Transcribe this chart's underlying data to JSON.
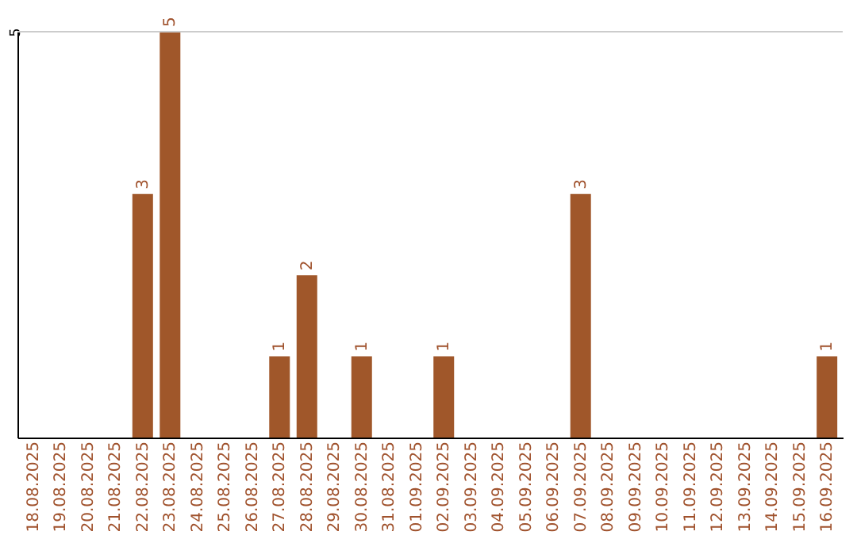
{
  "chart_data": {
    "type": "bar",
    "categories": [
      "18.08.2025",
      "19.08.2025",
      "20.08.2025",
      "21.08.2025",
      "22.08.2025",
      "23.08.2025",
      "24.08.2025",
      "25.08.2025",
      "26.08.2025",
      "27.08.2025",
      "28.08.2025",
      "29.08.2025",
      "30.08.2025",
      "31.08.2025",
      "01.09.2025",
      "02.09.2025",
      "03.09.2025",
      "04.09.2025",
      "05.09.2025",
      "06.09.2025",
      "07.09.2025",
      "08.09.2025",
      "09.09.2025",
      "10.09.2025",
      "11.09.2025",
      "12.09.2025",
      "13.09.2025",
      "14.09.2025",
      "15.09.2025",
      "16.09.2025"
    ],
    "values": [
      0,
      0,
      0,
      0,
      3,
      5,
      0,
      0,
      0,
      1,
      2,
      0,
      1,
      0,
      0,
      1,
      0,
      0,
      0,
      0,
      3,
      0,
      0,
      0,
      0,
      0,
      0,
      0,
      0,
      1
    ],
    "value_labels": [
      null,
      null,
      null,
      null,
      "3",
      "5",
      null,
      null,
      null,
      "1",
      "2",
      null,
      "1",
      null,
      null,
      "1",
      null,
      null,
      null,
      null,
      "3",
      null,
      null,
      null,
      null,
      null,
      null,
      null,
      null,
      "1"
    ],
    "color": "#a0572a",
    "ylim": [
      0,
      5
    ],
    "yticks": [
      5
    ],
    "ref_lines": [
      {
        "axis": "y",
        "value": 5,
        "color": "#cccccc"
      }
    ]
  }
}
